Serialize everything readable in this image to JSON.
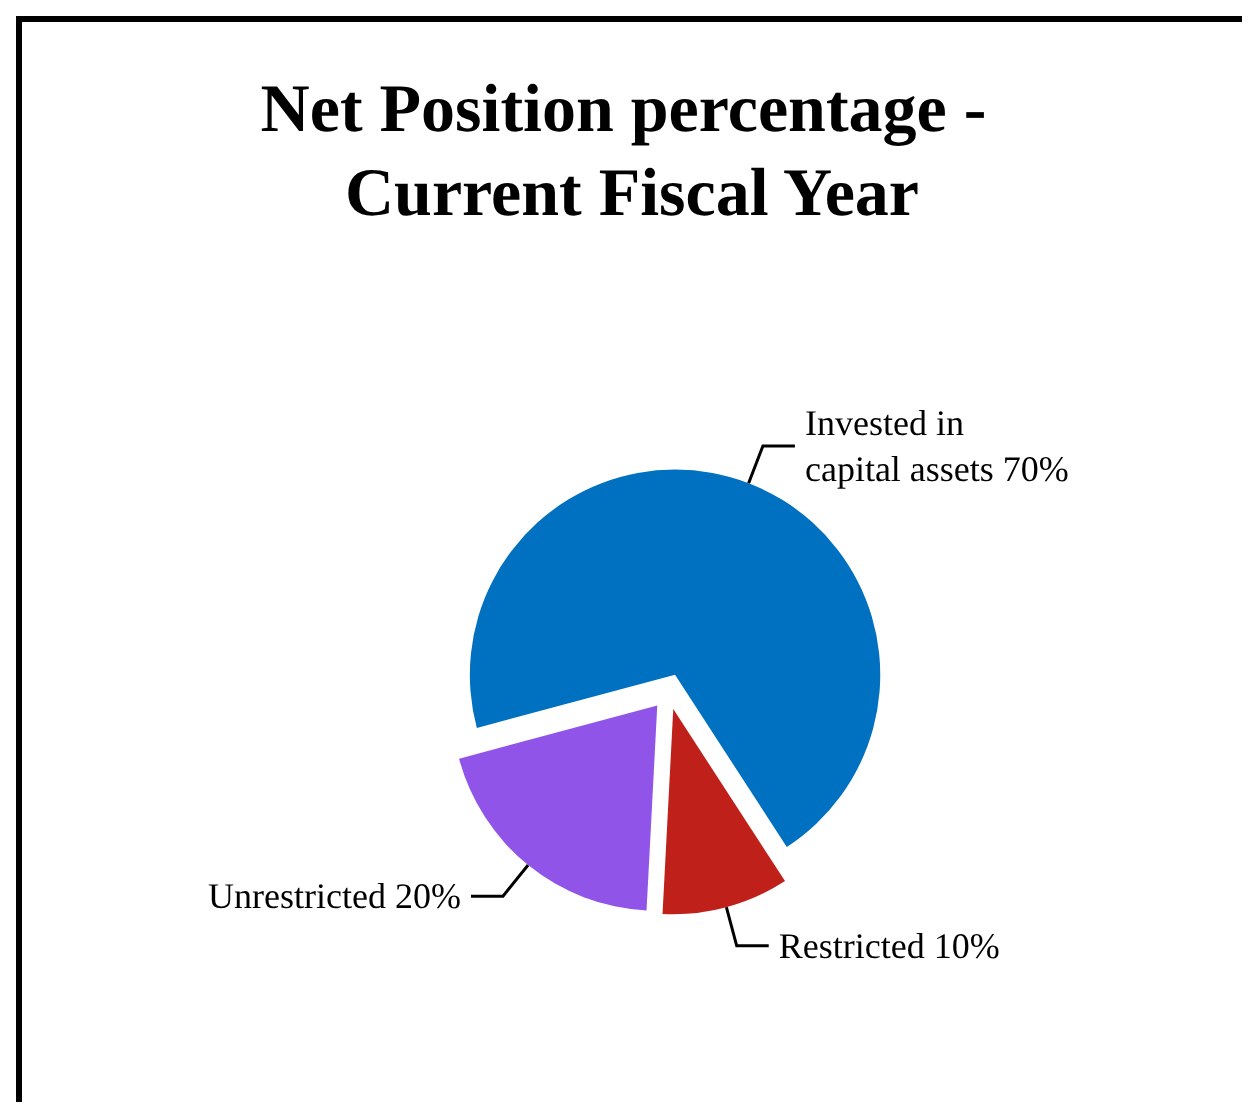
{
  "chart_data": {
    "type": "pie",
    "title": "Net Position percentage - Current Fiscal Year",
    "categories": [
      "Invested in capital assets",
      "Restricted",
      "Unrestricted"
    ],
    "values": [
      70,
      10,
      20
    ],
    "colors": [
      "#0070c0",
      "#c0201a",
      "#9055e8"
    ],
    "value_labels": [
      "70%",
      "10%",
      "20%"
    ]
  }
}
